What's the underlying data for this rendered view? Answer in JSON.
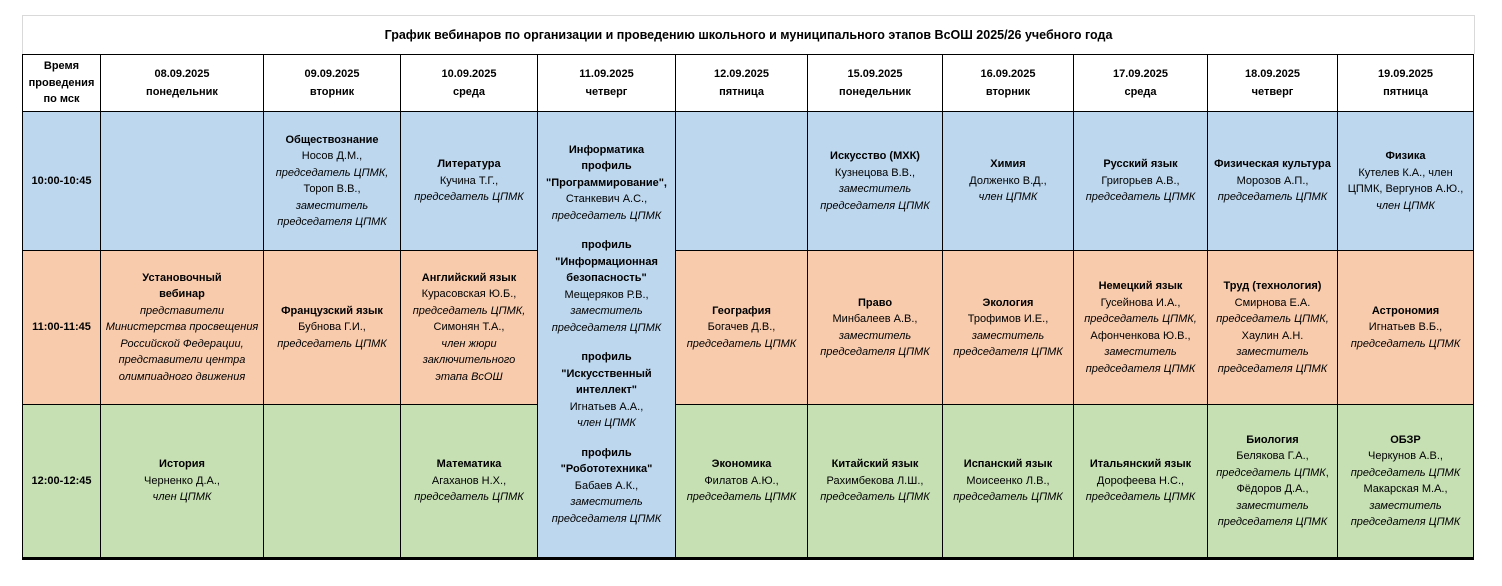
{
  "title": "График вебинаров по организации и проведению школьного и муниципального этапов ВсОШ 2025/26 учебного года",
  "colors": {
    "blue": "#BDD7EE",
    "orange": "#F8CBAD",
    "green": "#C6E0B4",
    "header_bg": "#FFFFFF",
    "border": "#000000"
  },
  "header": {
    "time_label": "Время проведения по мск",
    "days": [
      {
        "date": "08.09.2025",
        "weekday": "понедельник"
      },
      {
        "date": "09.09.2025",
        "weekday": "вторник"
      },
      {
        "date": "10.09.2025",
        "weekday": "среда"
      },
      {
        "date": "11.09.2025",
        "weekday": "четверг"
      },
      {
        "date": "12.09.2025",
        "weekday": "пятница"
      },
      {
        "date": "15.09.2025",
        "weekday": "понедельник"
      },
      {
        "date": "16.09.2025",
        "weekday": "вторник"
      },
      {
        "date": "17.09.2025",
        "weekday": "среда"
      },
      {
        "date": "18.09.2025",
        "weekday": "четверг"
      },
      {
        "date": "19.09.2025",
        "weekday": "пятница"
      }
    ]
  },
  "rows": [
    {
      "time": "10:00-10:45",
      "color": "blue",
      "cells": [
        {
          "lines": []
        },
        {
          "lines": [
            [
              {
                "t": "Обществознание",
                "s": "b"
              }
            ],
            [
              {
                "t": "Носов Д.М.,",
                "s": "r"
              }
            ],
            [
              {
                "t": "председатель ЦПМК,",
                "s": "i"
              }
            ],
            [
              {
                "t": "Тороп В.В.,",
                "s": "r"
              }
            ],
            [
              {
                "t": "заместитель председателя ЦПМК",
                "s": "i"
              }
            ]
          ]
        },
        {
          "lines": [
            [
              {
                "t": "Литература",
                "s": "b"
              }
            ],
            [
              {
                "t": "Кучина Т.Г.,",
                "s": "r"
              }
            ],
            [
              {
                "t": "председатель ЦПМК",
                "s": "i"
              }
            ]
          ]
        },
        {
          "rowspan": 3,
          "color": "blue",
          "lines": [
            [
              {
                "t": "Информатика",
                "s": "b"
              }
            ],
            [
              {
                "t": "профиль \"Программирование\",",
                "s": "b"
              }
            ],
            [
              {
                "t": "Станкевич А.С.,",
                "s": "r"
              }
            ],
            [
              {
                "t": "председатель ЦПМК",
                "s": "i"
              }
            ],
            [],
            [
              {
                "t": "профиль \"Информационная безопасность\"",
                "s": "b"
              }
            ],
            [
              {
                "t": "Мещеряков Р.В.,",
                "s": "r"
              }
            ],
            [
              {
                "t": "заместитель председателя ЦПМК",
                "s": "i"
              }
            ],
            [],
            [
              {
                "t": "профиль \"Искусственный интеллект\"",
                "s": "b"
              }
            ],
            [
              {
                "t": "Игнатьев А.А.,",
                "s": "r"
              }
            ],
            [
              {
                "t": "член ЦПМК",
                "s": "i"
              }
            ],
            [],
            [
              {
                "t": "профиль \"Робототехника\"",
                "s": "b"
              }
            ],
            [
              {
                "t": "Бабаев А.К.,",
                "s": "r"
              }
            ],
            [
              {
                "t": "заместитель председателя ЦПМК",
                "s": "i"
              }
            ]
          ]
        },
        {
          "lines": []
        },
        {
          "lines": [
            [
              {
                "t": "Искусство (МХК)",
                "s": "b"
              }
            ],
            [
              {
                "t": "Кузнецова В.В.,",
                "s": "r"
              }
            ],
            [
              {
                "t": "заместитель председателя ЦПМК",
                "s": "i"
              }
            ]
          ]
        },
        {
          "lines": [
            [
              {
                "t": "Химия",
                "s": "b"
              }
            ],
            [
              {
                "t": "Долженко В.Д.,",
                "s": "r"
              }
            ],
            [
              {
                "t": "член ЦПМК",
                "s": "i"
              }
            ]
          ]
        },
        {
          "lines": [
            [
              {
                "t": "Русский язык",
                "s": "b"
              }
            ],
            [
              {
                "t": "Григорьев А.В.,",
                "s": "r"
              }
            ],
            [
              {
                "t": "председатель ЦПМК",
                "s": "i"
              }
            ]
          ]
        },
        {
          "lines": [
            [
              {
                "t": "Физическая культура",
                "s": "b"
              }
            ],
            [
              {
                "t": "Морозов А.П.,",
                "s": "r"
              }
            ],
            [
              {
                "t": "председатель ЦПМК",
                "s": "i"
              }
            ]
          ]
        },
        {
          "lines": [
            [
              {
                "t": "Физика",
                "s": "b"
              }
            ],
            [
              {
                "t": "Кутелев К.А., член ЦПМК, Вергунов А.Ю., ",
                "s": "r"
              },
              {
                "t": "член ЦПМК",
                "s": "i"
              }
            ]
          ]
        }
      ]
    },
    {
      "time": "11:00-11:45",
      "color": "orange",
      "cells": [
        {
          "lines": [
            [
              {
                "t": "Установочный",
                "s": "b"
              }
            ],
            [
              {
                "t": "вебинар",
                "s": "b"
              }
            ],
            [
              {
                "t": "представители Министерства просвещения Российской Федерации,",
                "s": "i"
              }
            ],
            [
              {
                "t": "представители центра олимпиадного движения",
                "s": "i"
              }
            ]
          ]
        },
        {
          "lines": [
            [
              {
                "t": "Французский язык",
                "s": "b"
              }
            ],
            [
              {
                "t": "Бубнова Г.И.,",
                "s": "r"
              }
            ],
            [
              {
                "t": "председатель ЦПМК",
                "s": "i"
              }
            ]
          ]
        },
        {
          "lines": [
            [
              {
                "t": "Английский язык",
                "s": "b"
              }
            ],
            [
              {
                "t": "Курасовская Ю.Б.,",
                "s": "r"
              }
            ],
            [
              {
                "t": "председатель ЦПМК,",
                "s": "i"
              }
            ],
            [
              {
                "t": "Симонян Т.А.,",
                "s": "r"
              }
            ],
            [
              {
                "t": "член жюри заключительного этапа ВсОШ",
                "s": "i"
              }
            ]
          ]
        },
        null,
        {
          "lines": [
            [
              {
                "t": "География",
                "s": "b"
              }
            ],
            [
              {
                "t": "Богачев Д.В.,",
                "s": "r"
              }
            ],
            [
              {
                "t": "председатель ЦПМК",
                "s": "i"
              }
            ]
          ]
        },
        {
          "lines": [
            [
              {
                "t": "Право",
                "s": "b"
              }
            ],
            [
              {
                "t": "Минбалеев А.В.,",
                "s": "r"
              }
            ],
            [
              {
                "t": "заместитель председателя ЦПМК",
                "s": "i"
              }
            ]
          ]
        },
        {
          "lines": [
            [
              {
                "t": "Экология",
                "s": "b"
              }
            ],
            [
              {
                "t": "Трофимов И.Е.,",
                "s": "r"
              }
            ],
            [
              {
                "t": "заместитель председателя ЦПМК",
                "s": "i"
              }
            ]
          ]
        },
        {
          "lines": [
            [
              {
                "t": "Немецкий язык",
                "s": "b"
              }
            ],
            [
              {
                "t": "Гусейнова И.А.,",
                "s": "r"
              }
            ],
            [
              {
                "t": "председатель ЦПМК,",
                "s": "i"
              }
            ],
            [
              {
                "t": "Афонченкова Ю.В.,",
                "s": "r"
              }
            ],
            [
              {
                "t": "заместитель председателя ЦПМК",
                "s": "i"
              }
            ]
          ]
        },
        {
          "lines": [
            [
              {
                "t": "Труд (технология)",
                "s": "b"
              }
            ],
            [
              {
                "t": "Смирнова Е.А. ",
                "s": "r"
              },
              {
                "t": "председатель ЦПМК,",
                "s": "i"
              },
              {
                "t": " Хаулин А.Н. ",
                "s": "r"
              },
              {
                "t": "заместитель председателя ЦПМК",
                "s": "i"
              }
            ]
          ]
        },
        {
          "lines": [
            [
              {
                "t": "Астрономия",
                "s": "b"
              }
            ],
            [
              {
                "t": "Игнатьев В.Б.,",
                "s": "r"
              }
            ],
            [
              {
                "t": "председатель ЦПМК",
                "s": "i"
              }
            ]
          ]
        }
      ]
    },
    {
      "time": "12:00-12:45",
      "color": "green",
      "cells": [
        {
          "lines": [
            [
              {
                "t": "История",
                "s": "b"
              }
            ],
            [
              {
                "t": "Черненко Д.А.,",
                "s": "r"
              }
            ],
            [
              {
                "t": "член ЦПМК",
                "s": "i"
              }
            ]
          ]
        },
        {
          "lines": []
        },
        {
          "lines": [
            [
              {
                "t": "Математика",
                "s": "b"
              }
            ],
            [
              {
                "t": "Агаханов Н.Х.,",
                "s": "r"
              }
            ],
            [
              {
                "t": "председатель ЦПМК",
                "s": "i"
              }
            ]
          ]
        },
        null,
        {
          "lines": [
            [
              {
                "t": "Экономика",
                "s": "b"
              }
            ],
            [
              {
                "t": "Филатов А.Ю.,",
                "s": "r"
              }
            ],
            [
              {
                "t": "председатель ЦПМК",
                "s": "i"
              }
            ]
          ]
        },
        {
          "lines": [
            [
              {
                "t": "Китайский язык",
                "s": "b"
              }
            ],
            [
              {
                "t": "Рахимбекова Л.Ш.,",
                "s": "r"
              }
            ],
            [
              {
                "t": "председатель ЦПМК",
                "s": "i"
              }
            ]
          ]
        },
        {
          "lines": [
            [
              {
                "t": "Испанский язык",
                "s": "b"
              }
            ],
            [
              {
                "t": "Моисеенко Л.В.,",
                "s": "r"
              }
            ],
            [
              {
                "t": "председатель ЦПМК",
                "s": "i"
              }
            ]
          ]
        },
        {
          "lines": [
            [
              {
                "t": "Итальянский язык",
                "s": "b"
              }
            ],
            [
              {
                "t": "Дорофеева Н.С.,",
                "s": "r"
              }
            ],
            [
              {
                "t": "председатель ЦПМК",
                "s": "i"
              }
            ]
          ]
        },
        {
          "lines": [
            [
              {
                "t": "Биология",
                "s": "b"
              }
            ],
            [
              {
                "t": "Белякова Г.А., ",
                "s": "r"
              },
              {
                "t": "председатель ЦПМК",
                "s": "i"
              },
              {
                "t": ", Фёдоров Д.А., ",
                "s": "r"
              },
              {
                "t": "заместитель председателя ЦПМК",
                "s": "i"
              }
            ]
          ]
        },
        {
          "lines": [
            [
              {
                "t": "ОБЗР",
                "s": "b"
              }
            ],
            [
              {
                "t": "Черкунов А.В.,",
                "s": "r"
              }
            ],
            [
              {
                "t": "председатель ЦПМК",
                "s": "i"
              }
            ],
            [
              {
                "t": "Макарская М.А.,",
                "s": "r"
              }
            ],
            [
              {
                "t": "заместитель председателя ЦПМК",
                "s": "i"
              }
            ]
          ]
        }
      ]
    }
  ]
}
